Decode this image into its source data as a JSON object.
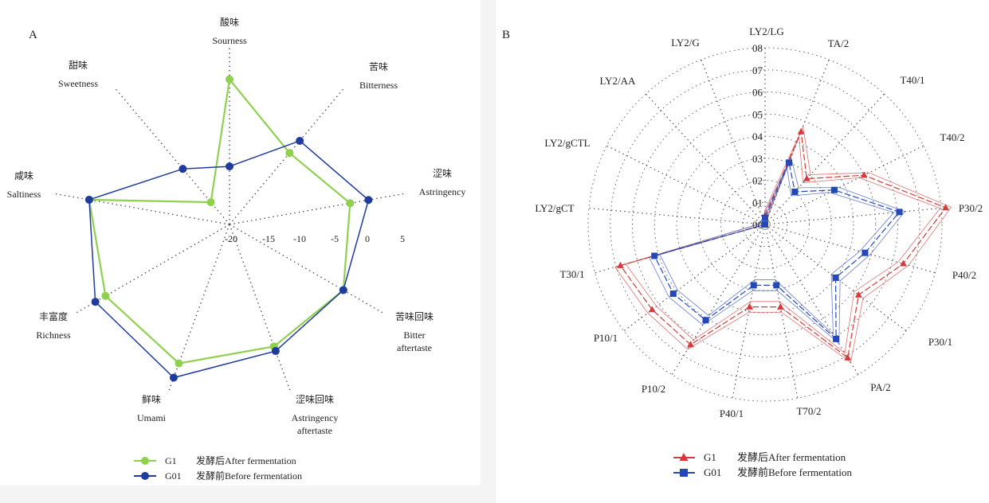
{
  "chart_data": [
    {
      "panel_label": "A",
      "type": "radar",
      "axes": [
        {
          "zh": "酸味",
          "en": [
            "Sourness"
          ]
        },
        {
          "zh": "苦味",
          "en": [
            "Bitterness"
          ]
        },
        {
          "zh": "涩味",
          "en": [
            "Astringency"
          ]
        },
        {
          "zh": "苦味回味",
          "en": [
            "Bitter",
            "aftertaste"
          ]
        },
        {
          "zh": "涩味回味",
          "en": [
            "Astringency",
            "aftertaste"
          ]
        },
        {
          "zh": "鲜味",
          "en": [
            "Umami"
          ]
        },
        {
          "zh": "丰富度",
          "en": [
            "Richness"
          ]
        },
        {
          "zh": "咸味",
          "en": [
            "Saltiness"
          ]
        },
        {
          "zh": "甜味",
          "en": [
            "Sweetness"
          ]
        }
      ],
      "range": [
        -20,
        5
      ],
      "ticks": [
        -20,
        -15,
        -10,
        -5,
        0,
        5
      ],
      "tick_labels": [
        "-20",
        "-15",
        "-10",
        "-5",
        "0",
        "5"
      ],
      "grid": "dotted spokes",
      "legend_placement": "bottom",
      "series": [
        {
          "name": "G1",
          "label": "发酵后After fermentation",
          "color": "#8fd14f",
          "marker": "circle",
          "values": [
            1.0,
            -6.5,
            -2.3,
            -1.0,
            -1.2,
            1.4,
            0.7,
            0.6,
            -15.8
          ]
        },
        {
          "name": "G01",
          "label": "发酵前Before fermentation",
          "color": "#1f3b9e",
          "marker": "circle",
          "values": [
            -11.6,
            -4.2,
            0.4,
            -1.0,
            -0.5,
            3.6,
            2.4,
            0.6,
            -9.5
          ]
        }
      ]
    },
    {
      "panel_label": "B",
      "type": "radar",
      "axes": [
        "LY2/LG",
        "TA/2",
        "T40/1",
        "T40/2",
        "P30/2",
        "P40/2",
        "P30/1",
        "PA/2",
        "T70/2",
        "P40/1",
        "P10/2",
        "P10/1",
        "T30/1",
        "LY2/gCT",
        "LY2/gCTL",
        "LY2/AA",
        "LY2/G"
      ],
      "range": [
        0,
        0.8
      ],
      "ticks": [
        0,
        0.1,
        0.2,
        0.3,
        0.4,
        0.5,
        0.6,
        0.7,
        0.8
      ],
      "tick_labels": [
        "00",
        "01",
        "02",
        "03",
        "04",
        "05",
        "06",
        "07",
        "08"
      ],
      "grid": "dotted circles and spokes",
      "legend_placement": "bottom",
      "series": [
        {
          "name": "G1",
          "label": "发酵后After fermentation",
          "color": "#d43a3a",
          "marker": "triangle",
          "values": [
            0.04,
            0.45,
            0.28,
            0.5,
            0.82,
            0.65,
            0.53,
            0.71,
            0.38,
            0.38,
            0.64,
            0.64,
            0.68,
            0.0,
            0.0,
            0.0,
            0.0
          ]
        },
        {
          "name": "G01",
          "label": "发酵前Before fermentation",
          "color": "#2448b8",
          "marker": "square",
          "values": [
            0.03,
            0.3,
            0.2,
            0.35,
            0.61,
            0.47,
            0.4,
            0.61,
            0.28,
            0.28,
            0.51,
            0.52,
            0.52,
            0.0,
            0.0,
            0.0,
            0.0
          ]
        }
      ]
    }
  ]
}
